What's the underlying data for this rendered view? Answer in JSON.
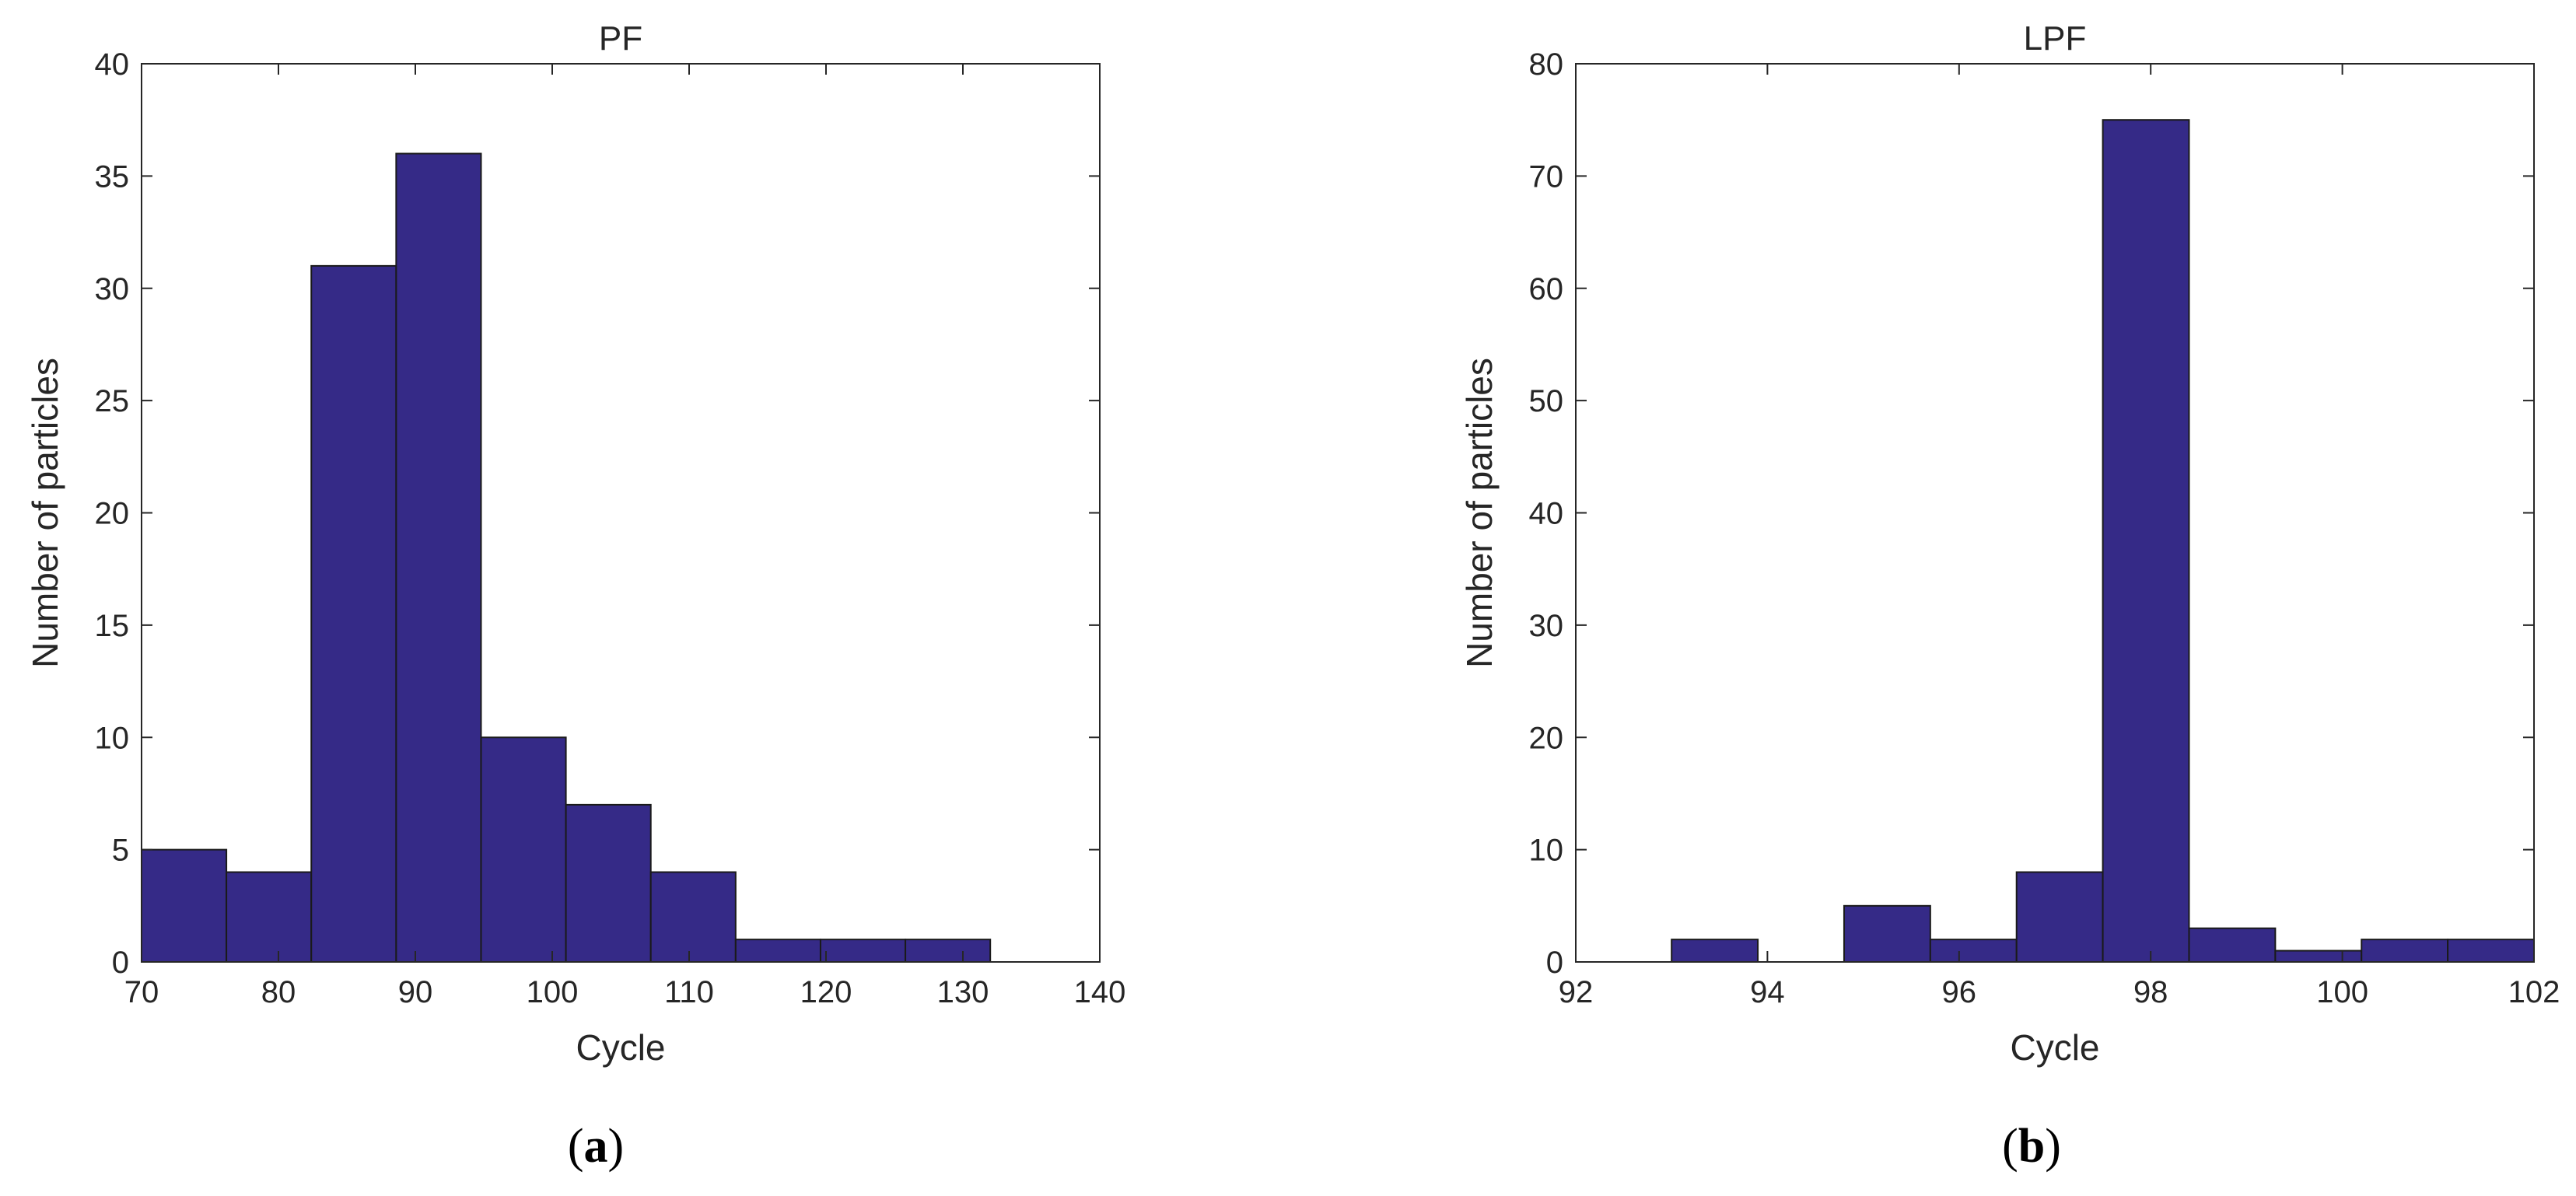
{
  "chart_data": [
    {
      "type": "bar",
      "title": "PF",
      "xlabel": "Cycle",
      "ylabel": "Number of particles",
      "panel_label": "a",
      "xlim": [
        70,
        140
      ],
      "ylim": [
        0,
        40
      ],
      "xticks": [
        70,
        80,
        90,
        100,
        110,
        120,
        130,
        140
      ],
      "yticks": [
        0,
        5,
        10,
        15,
        20,
        25,
        30,
        35,
        40
      ],
      "bin_edges": [
        70,
        76.2,
        82.4,
        88.6,
        94.8,
        101.0,
        107.2,
        113.4,
        119.6,
        125.8,
        132.0
      ],
      "values": [
        5,
        4,
        31,
        36,
        10,
        7,
        4,
        1,
        1,
        1
      ],
      "bar_color": "#352a87"
    },
    {
      "type": "bar",
      "title": "LPF",
      "xlabel": "Cycle",
      "ylabel": "Number of particles",
      "panel_label": "b",
      "xlim": [
        92,
        102
      ],
      "ylim": [
        0,
        80
      ],
      "xticks": [
        92,
        94,
        96,
        98,
        100,
        102
      ],
      "yticks": [
        0,
        10,
        20,
        30,
        40,
        50,
        60,
        70,
        80
      ],
      "bin_edges": [
        93.0,
        93.9,
        94.8,
        95.7,
        96.6,
        97.5,
        98.4,
        99.3,
        100.2,
        101.1,
        102.0
      ],
      "values": [
        2,
        0,
        5,
        2,
        8,
        75,
        3,
        1,
        2,
        2
      ],
      "bar_color": "#352a87"
    }
  ]
}
